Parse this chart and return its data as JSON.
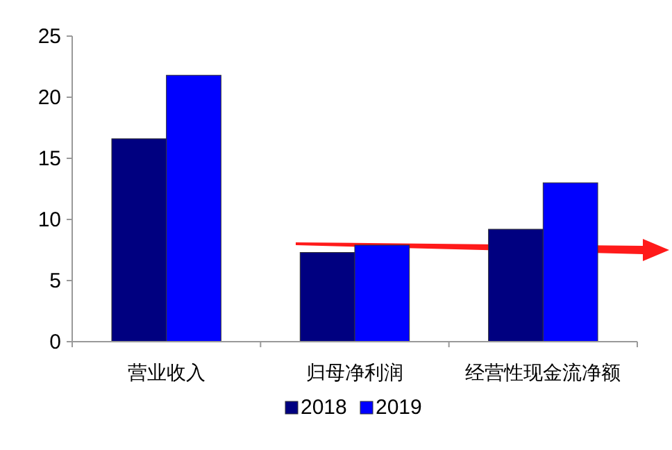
{
  "chart_data": {
    "type": "bar",
    "categories": [
      "营业收入",
      "归母净利润",
      "经营性现金流净额"
    ],
    "series": [
      {
        "name": "2018",
        "color": "#000080",
        "values": [
          16.6,
          7.3,
          9.2
        ]
      },
      {
        "name": "2019",
        "color": "#0000ff",
        "values": [
          21.8,
          7.9,
          13.0
        ]
      }
    ],
    "ylim": [
      0,
      25
    ],
    "yticks": [
      0,
      5,
      10,
      15,
      20,
      25
    ],
    "grid": false,
    "legend": "bottom"
  }
}
